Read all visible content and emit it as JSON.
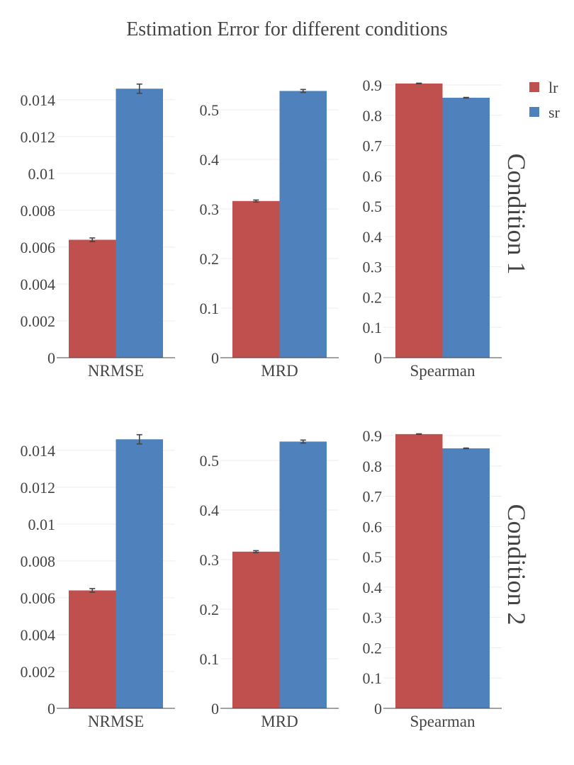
{
  "chart_data": {
    "type": "bar",
    "title": "Estimation Error for different conditions",
    "legend": {
      "position": "top-right",
      "entries": [
        "lr",
        "sr"
      ]
    },
    "colors": {
      "lr": "#c0504d",
      "sr": "#4f81bd"
    },
    "grid": true,
    "series_names": [
      "lr",
      "sr"
    ],
    "rows": [
      {
        "label": "Condition 1",
        "panels": [
          {
            "category": "NRMSE",
            "ylim": [
              0,
              0.0148
            ],
            "ticks": [
              0,
              0.002,
              0.004,
              0.006,
              0.008,
              0.01,
              0.012,
              0.014
            ],
            "tick_labels": [
              "0",
              "0.002",
              "0.004",
              "0.006",
              "0.008",
              "0.01",
              "0.012",
              "0.014"
            ],
            "values": [
              0.0064,
              0.0146
            ],
            "errors": [
              0.0001,
              0.00025
            ]
          },
          {
            "category": "MRD",
            "ylim": [
              0,
              0.55
            ],
            "ticks": [
              0,
              0.1,
              0.2,
              0.3,
              0.4,
              0.5
            ],
            "tick_labels": [
              "0",
              "0.1",
              "0.2",
              "0.3",
              "0.4",
              "0.5"
            ],
            "values": [
              0.316,
              0.538
            ],
            "errors": [
              0.002,
              0.003
            ]
          },
          {
            "category": "Spearman",
            "ylim": [
              0,
              0.9
            ],
            "ticks": [
              0,
              0.1,
              0.2,
              0.3,
              0.4,
              0.5,
              0.6,
              0.7,
              0.8,
              0.9
            ],
            "tick_labels": [
              "0",
              "0.1",
              "0.2",
              "0.3",
              "0.4",
              "0.5",
              "0.6",
              "0.7",
              "0.8",
              "0.9"
            ],
            "values": [
              0.905,
              0.858
            ],
            "errors": [
              0.001,
              0.001
            ]
          }
        ]
      },
      {
        "label": "Condition 2",
        "panels": [
          {
            "category": "NRMSE",
            "ylim": [
              0,
              0.0148
            ],
            "ticks": [
              0,
              0.002,
              0.004,
              0.006,
              0.008,
              0.01,
              0.012,
              0.014
            ],
            "tick_labels": [
              "0",
              "0.002",
              "0.004",
              "0.006",
              "0.008",
              "0.01",
              "0.012",
              "0.014"
            ],
            "values": [
              0.0064,
              0.0146
            ],
            "errors": [
              0.0001,
              0.00025
            ]
          },
          {
            "category": "MRD",
            "ylim": [
              0,
              0.55
            ],
            "ticks": [
              0,
              0.1,
              0.2,
              0.3,
              0.4,
              0.5
            ],
            "tick_labels": [
              "0",
              "0.1",
              "0.2",
              "0.3",
              "0.4",
              "0.5"
            ],
            "values": [
              0.316,
              0.538
            ],
            "errors": [
              0.002,
              0.003
            ]
          },
          {
            "category": "Spearman",
            "ylim": [
              0,
              0.9
            ],
            "ticks": [
              0,
              0.1,
              0.2,
              0.3,
              0.4,
              0.5,
              0.6,
              0.7,
              0.8,
              0.9
            ],
            "tick_labels": [
              "0",
              "0.1",
              "0.2",
              "0.3",
              "0.4",
              "0.5",
              "0.6",
              "0.7",
              "0.8",
              "0.9"
            ],
            "values": [
              0.905,
              0.858
            ],
            "errors": [
              0.001,
              0.001
            ]
          }
        ]
      }
    ]
  }
}
